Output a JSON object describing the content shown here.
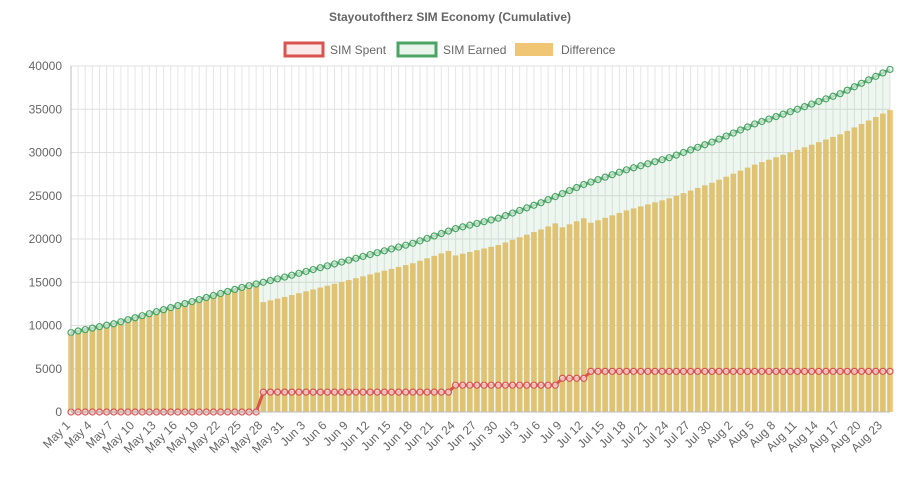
{
  "chart_data": {
    "type": "bar",
    "title": "Stayoutoftherz SIM Economy (Cumulative)",
    "xlabel": "",
    "ylabel": "",
    "ylim": [
      0,
      40000
    ],
    "y_ticks": [
      "0",
      "5000",
      "10000",
      "15000",
      "20000",
      "25000",
      "30000",
      "35000",
      "40000"
    ],
    "x_tick_labels": [
      "May 1",
      "May 4",
      "May 7",
      "May 10",
      "May 13",
      "May 16",
      "May 19",
      "May 22",
      "May 25",
      "May 28",
      "May 31",
      "Jun 3",
      "Jun 6",
      "Jun 9",
      "Jun 12",
      "Jun 15",
      "Jun 18",
      "Jun 21",
      "Jun 24",
      "Jun 27",
      "Jun 30",
      "Jul 3",
      "Jul 6",
      "Jul 9",
      "Jul 12",
      "Jul 15",
      "Jul 18",
      "Jul 21",
      "Jul 24",
      "Jul 27",
      "Jul 30",
      "Aug 2",
      "Aug 5",
      "Aug 8",
      "Aug 11",
      "Aug 14",
      "Aug 17",
      "Aug 20",
      "Aug 23"
    ],
    "legend_position": "top",
    "grid": true,
    "start_label": "May 1",
    "end_label": "Aug 24",
    "earned_anchors": [
      {
        "date": "May 1",
        "value": 9200
      },
      {
        "date": "May 7",
        "value": 10200
      },
      {
        "date": "May 13",
        "value": 11600
      },
      {
        "date": "May 19",
        "value": 13000
      },
      {
        "date": "May 25",
        "value": 14400
      },
      {
        "date": "May 31",
        "value": 15600
      },
      {
        "date": "Jun 6",
        "value": 16900
      },
      {
        "date": "Jun 12",
        "value": 18200
      },
      {
        "date": "Jun 18",
        "value": 19500
      },
      {
        "date": "Jun 24",
        "value": 21200
      },
      {
        "date": "Jun 30",
        "value": 22400
      },
      {
        "date": "Jul 6",
        "value": 24200
      },
      {
        "date": "Jul 12",
        "value": 26300
      },
      {
        "date": "Jul 18",
        "value": 28000
      },
      {
        "date": "Jul 24",
        "value": 29400
      },
      {
        "date": "Jul 30",
        "value": 31200
      },
      {
        "date": "Aug 5",
        "value": 33300
      },
      {
        "date": "Aug 11",
        "value": 35000
      },
      {
        "date": "Aug 17",
        "value": 36800
      },
      {
        "date": "Aug 24",
        "value": 39600
      }
    ],
    "spent_steps": [
      {
        "from": "May 1",
        "value": 0
      },
      {
        "from": "May 28",
        "value": 2300
      },
      {
        "from": "Jun 24",
        "value": 3100
      },
      {
        "from": "Jul 9",
        "value": 3900
      },
      {
        "from": "Jul 13",
        "value": 4700
      }
    ],
    "series": [
      {
        "name": "SIM Spent",
        "type": "line",
        "color": "#d9534f"
      },
      {
        "name": "SIM Earned",
        "type": "line",
        "color": "#4aa564"
      },
      {
        "name": "Difference",
        "type": "bar",
        "color": "#f0c674"
      }
    ]
  }
}
